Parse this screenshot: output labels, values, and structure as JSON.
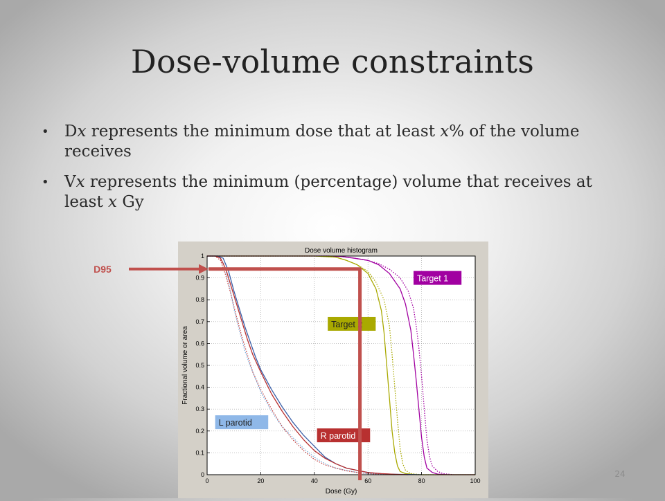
{
  "slide": {
    "title": "Dose-volume constraints",
    "bullets": [
      {
        "parts": [
          {
            "text": "D",
            "italic": false
          },
          {
            "text": "x",
            "italic": true
          },
          {
            "text": " represents the minimum dose that at least ",
            "italic": false
          },
          {
            "text": "x",
            "italic": true
          },
          {
            "text": "% of the volume receives",
            "italic": false
          }
        ]
      },
      {
        "parts": [
          {
            "text": "V",
            "italic": false
          },
          {
            "text": "x",
            "italic": true
          },
          {
            "text": " represents the minimum (percentage) volume that receives at least ",
            "italic": false
          },
          {
            "text": "x",
            "italic": true
          },
          {
            "text": " Gy",
            "italic": false
          }
        ]
      }
    ],
    "page_number": "24"
  },
  "chart_data": {
    "type": "line",
    "title": "Dose volume histogram",
    "xlabel": "Dose (Gy)",
    "ylabel": "Fractional volume or area",
    "xlim": [
      0,
      100
    ],
    "ylim": [
      0,
      1
    ],
    "xticks": [
      0,
      20,
      40,
      60,
      80,
      100
    ],
    "yticks": [
      0,
      0.1,
      0.2,
      0.3,
      0.4,
      0.5,
      0.6,
      0.7,
      0.8,
      0.9,
      1
    ],
    "grid": true,
    "series": [
      {
        "name": "Target 1",
        "color": "#a100a1",
        "style": "solid",
        "x": [
          0,
          45,
          50,
          55,
          60,
          64,
          68,
          72,
          74,
          76,
          77,
          78,
          79,
          80,
          81,
          82,
          84,
          86,
          90,
          100
        ],
        "y": [
          1,
          1,
          0.998,
          0.99,
          0.98,
          0.96,
          0.92,
          0.85,
          0.78,
          0.66,
          0.55,
          0.43,
          0.3,
          0.17,
          0.08,
          0.03,
          0.01,
          0.003,
          0,
          0
        ]
      },
      {
        "name": "Target 1",
        "color": "#a100a1",
        "style": "dotted",
        "x": [
          0,
          45,
          50,
          55,
          60,
          64,
          68,
          72,
          75,
          77,
          78,
          79,
          80,
          81,
          82,
          83,
          84,
          86,
          88,
          92,
          100
        ],
        "y": [
          1,
          1,
          0.998,
          0.99,
          0.98,
          0.965,
          0.94,
          0.9,
          0.84,
          0.76,
          0.68,
          0.58,
          0.45,
          0.3,
          0.16,
          0.08,
          0.04,
          0.015,
          0.005,
          0,
          0
        ]
      },
      {
        "name": "Target 2",
        "color": "#a9a900",
        "style": "solid",
        "x": [
          0,
          40,
          48,
          52,
          56,
          60,
          63,
          65,
          66,
          67,
          68,
          69,
          70,
          71,
          72,
          74,
          78,
          100
        ],
        "y": [
          1,
          1,
          0.995,
          0.98,
          0.96,
          0.92,
          0.85,
          0.75,
          0.65,
          0.5,
          0.35,
          0.2,
          0.1,
          0.04,
          0.015,
          0.005,
          0,
          0
        ]
      },
      {
        "name": "Target 2",
        "color": "#a9a900",
        "style": "dotted",
        "x": [
          0,
          40,
          48,
          52,
          56,
          60,
          63,
          66,
          68,
          69,
          70,
          71,
          72,
          73,
          74,
          76,
          80,
          100
        ],
        "y": [
          1,
          1,
          0.995,
          0.98,
          0.96,
          0.93,
          0.88,
          0.8,
          0.68,
          0.55,
          0.4,
          0.25,
          0.12,
          0.05,
          0.02,
          0.005,
          0,
          0
        ]
      },
      {
        "name": "L parotid",
        "color": "#3a5fa8",
        "style": "solid",
        "x": [
          0,
          4,
          6,
          8,
          10,
          12,
          14,
          16,
          18,
          20,
          24,
          28,
          32,
          36,
          40,
          44,
          48,
          52,
          56,
          60,
          65,
          70,
          75,
          80
        ],
        "y": [
          1,
          1,
          0.99,
          0.93,
          0.84,
          0.76,
          0.68,
          0.61,
          0.54,
          0.48,
          0.39,
          0.31,
          0.24,
          0.18,
          0.13,
          0.08,
          0.05,
          0.03,
          0.02,
          0.01,
          0.004,
          0.002,
          0.001,
          0
        ]
      },
      {
        "name": "L parotid",
        "color": "#7fb0e0",
        "style": "dotted",
        "x": [
          0,
          4,
          6,
          8,
          10,
          12,
          14,
          16,
          18,
          20,
          24,
          28,
          32,
          36,
          40,
          44,
          48,
          52,
          56,
          60,
          65,
          70
        ],
        "y": [
          1,
          1,
          0.97,
          0.88,
          0.76,
          0.66,
          0.57,
          0.5,
          0.44,
          0.38,
          0.29,
          0.22,
          0.17,
          0.12,
          0.08,
          0.05,
          0.03,
          0.02,
          0.01,
          0.005,
          0.002,
          0
        ]
      },
      {
        "name": "R parotid",
        "color": "#b83030",
        "style": "solid",
        "x": [
          0,
          3,
          5,
          7,
          9,
          11,
          13,
          15,
          17,
          20,
          24,
          28,
          32,
          36,
          40,
          44,
          48,
          52,
          56,
          60,
          65,
          70,
          75
        ],
        "y": [
          1,
          1,
          0.99,
          0.94,
          0.86,
          0.78,
          0.7,
          0.62,
          0.55,
          0.47,
          0.37,
          0.29,
          0.22,
          0.16,
          0.11,
          0.075,
          0.05,
          0.03,
          0.02,
          0.01,
          0.005,
          0.002,
          0
        ]
      },
      {
        "name": "R parotid",
        "color": "#c24040",
        "style": "dotted",
        "x": [
          0,
          3,
          5,
          7,
          9,
          11,
          13,
          15,
          17,
          20,
          24,
          28,
          32,
          36,
          40,
          44,
          48,
          52,
          56,
          60,
          65,
          70
        ],
        "y": [
          1,
          1,
          0.98,
          0.91,
          0.82,
          0.72,
          0.63,
          0.55,
          0.47,
          0.39,
          0.3,
          0.22,
          0.16,
          0.11,
          0.07,
          0.045,
          0.03,
          0.018,
          0.01,
          0.005,
          0.002,
          0
        ]
      }
    ],
    "labels": [
      {
        "text": "Target 1",
        "bg": "#a100a1",
        "fg": "#ffffff",
        "x": 77,
        "y": 0.9
      },
      {
        "text": "Target 2",
        "bg": "#a9a900",
        "fg": "#222222",
        "x": 45,
        "y": 0.69
      },
      {
        "text": "L parotid",
        "bg": "#8fb8e8",
        "fg": "#222222",
        "x": 3,
        "y": 0.24
      },
      {
        "text": "R parotid",
        "bg": "#b83030",
        "fg": "#ffffff",
        "x": 41,
        "y": 0.18
      }
    ],
    "annotation": {
      "text": "D95",
      "color": "#c0504d",
      "y_value": 0.95,
      "x_value": 57
    }
  }
}
